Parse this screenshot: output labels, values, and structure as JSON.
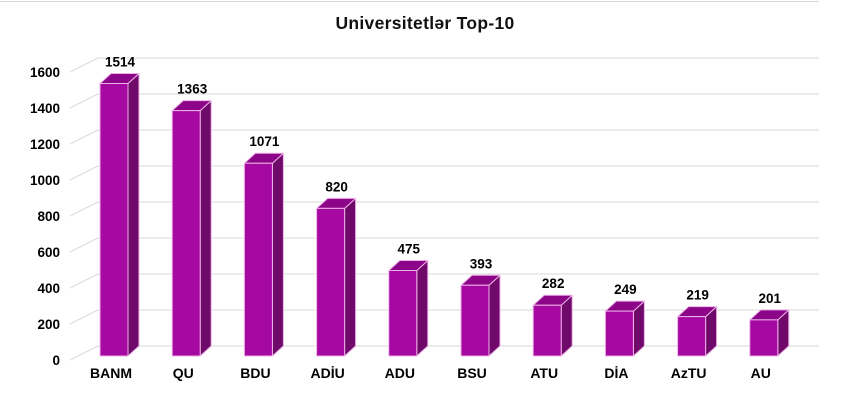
{
  "chart_data": {
    "type": "bar",
    "style": "3d-column",
    "title": "Universitetlər Top-10",
    "categories": [
      "BANM",
      "QU",
      "BDU",
      "ADİU",
      "ADU",
      "BSU",
      "ATU",
      "DİA",
      "AzTU",
      "AU"
    ],
    "values": [
      1514,
      1363,
      1071,
      820,
      475,
      393,
      282,
      249,
      219,
      201
    ],
    "xlabel": "",
    "ylabel": "",
    "ylim": [
      0,
      1600
    ],
    "ytick_step": 200,
    "ytick_labels": [
      "0",
      "200",
      "400",
      "600",
      "800",
      "1000",
      "1200",
      "1400",
      "1600"
    ],
    "grid": true,
    "legend": "none",
    "data_labels_shown": true,
    "colors": {
      "bar_front": "#A608A2",
      "bar_side": "#6F0A6B",
      "bar_top": "#8C0588",
      "bar_outline": "#EDB2E5",
      "gridline": "#D9D9D9",
      "text": "#000000",
      "background": "#FFFFFF"
    }
  }
}
